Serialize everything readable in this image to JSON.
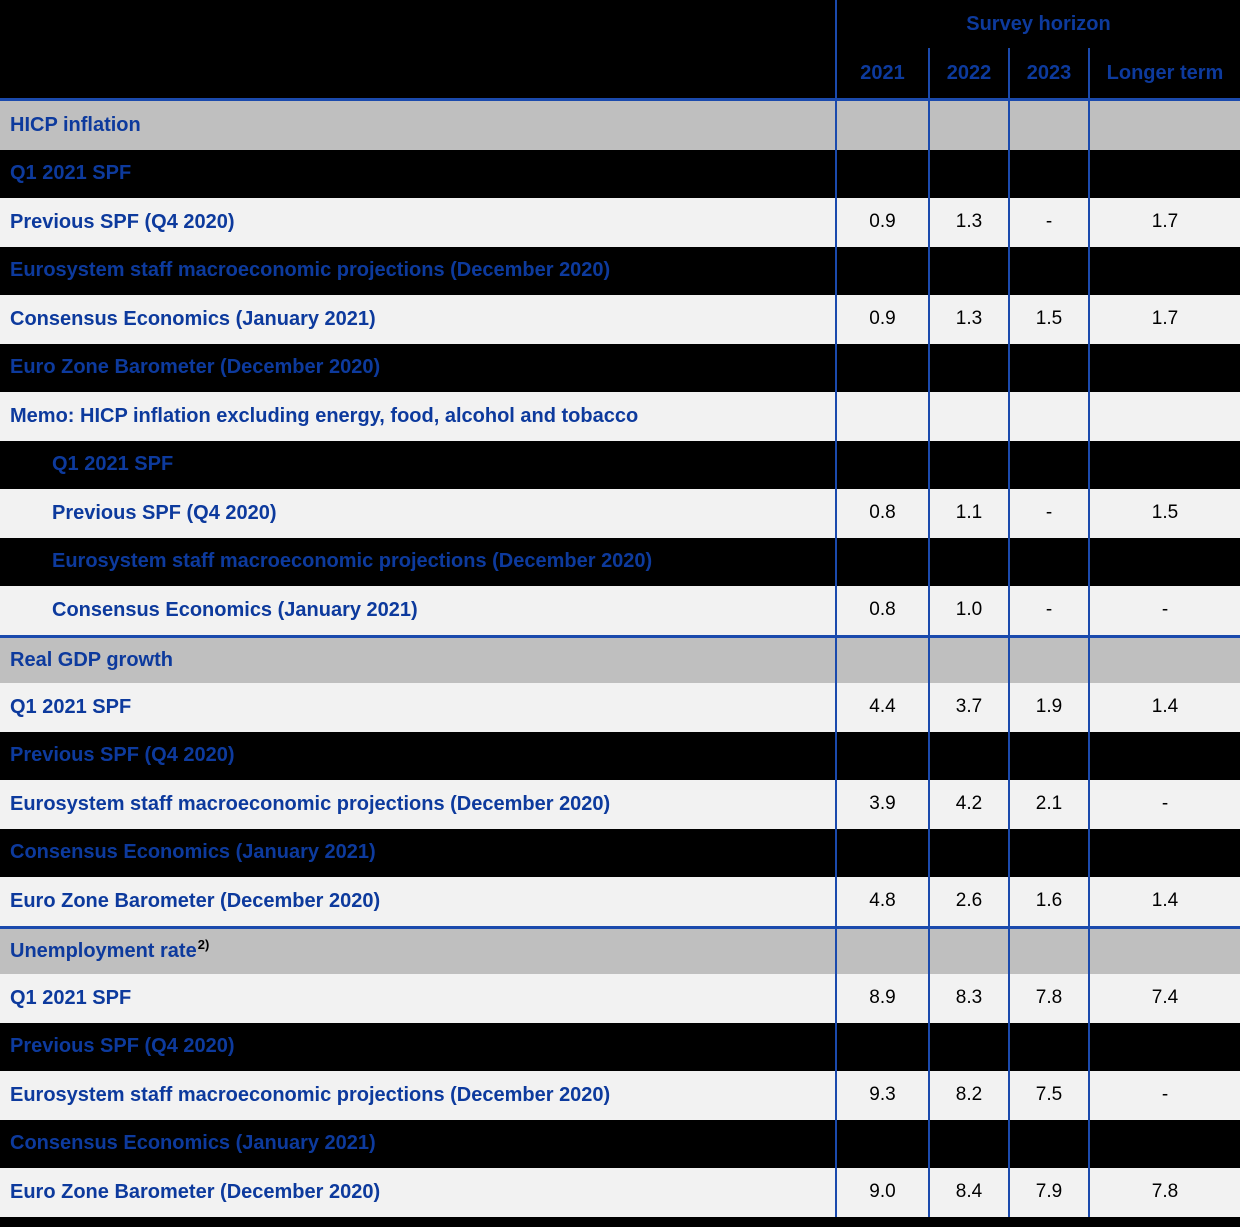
{
  "colors": {
    "text_blue": "#0d3a9d",
    "line_blue": "#1b4aad",
    "section_bg": "#bfbfbf",
    "row_bg": "#f2f2f2",
    "dark_bg": "#000000",
    "value_text": "#000000"
  },
  "header": {
    "group_label": "Survey horizon",
    "columns": [
      "2021",
      "2022",
      "2023",
      "Longer term"
    ]
  },
  "rows": [
    {
      "label": "HICP inflation",
      "style": "section",
      "indent": 0,
      "values": [
        "",
        "",
        "",
        ""
      ]
    },
    {
      "label": "Q1 2021 SPF",
      "style": "dark",
      "indent": 0,
      "values": [
        "",
        "",
        "",
        ""
      ]
    },
    {
      "label": "Previous SPF (Q4 2020)",
      "style": "light",
      "indent": 0,
      "values": [
        "0.9",
        "1.3",
        "-",
        "1.7"
      ]
    },
    {
      "label": "Eurosystem staff macroeconomic projections (December 2020)",
      "style": "dark",
      "indent": 0,
      "values": [
        "",
        "",
        "",
        ""
      ]
    },
    {
      "label": "Consensus Economics (January 2021)",
      "style": "light",
      "indent": 0,
      "values": [
        "0.9",
        "1.3",
        "1.5",
        "1.7"
      ]
    },
    {
      "label": "Euro Zone Barometer (December 2020)",
      "style": "dark",
      "indent": 0,
      "values": [
        "",
        "",
        "",
        ""
      ]
    },
    {
      "label": "Memo: HICP inflation excluding energy, food, alcohol and tobacco",
      "style": "light",
      "indent": 0,
      "values": [
        "",
        "",
        "",
        ""
      ]
    },
    {
      "label": "Q1 2021 SPF",
      "style": "dark",
      "indent": 1,
      "values": [
        "",
        "",
        "",
        ""
      ]
    },
    {
      "label": "Previous SPF (Q4 2020)",
      "style": "light",
      "indent": 1,
      "values": [
        "0.8",
        "1.1",
        "-",
        "1.5"
      ]
    },
    {
      "label": "Eurosystem staff macroeconomic projections (December 2020)",
      "style": "dark",
      "indent": 1,
      "values": [
        "",
        "",
        "",
        ""
      ]
    },
    {
      "label": "Consensus Economics (January 2021)",
      "style": "light",
      "indent": 1,
      "values": [
        "0.8",
        "1.0",
        "-",
        "-"
      ]
    },
    {
      "label": "Real GDP growth",
      "style": "section",
      "indent": 0,
      "rule_above": true,
      "values": [
        "",
        "",
        "",
        ""
      ]
    },
    {
      "label": "Q1 2021 SPF",
      "style": "light",
      "indent": 0,
      "values": [
        "4.4",
        "3.7",
        "1.9",
        "1.4"
      ]
    },
    {
      "label": "Previous SPF (Q4 2020)",
      "style": "dark",
      "indent": 0,
      "values": [
        "",
        "",
        "",
        ""
      ]
    },
    {
      "label": "Eurosystem staff macroeconomic projections (December 2020)",
      "style": "light",
      "indent": 0,
      "values": [
        "3.9",
        "4.2",
        "2.1",
        "-"
      ]
    },
    {
      "label": "Consensus Economics (January 2021)",
      "style": "dark",
      "indent": 0,
      "values": [
        "",
        "",
        "",
        ""
      ]
    },
    {
      "label": "Euro Zone Barometer (December 2020)",
      "style": "light",
      "indent": 0,
      "values": [
        "4.8",
        "2.6",
        "1.6",
        "1.4"
      ]
    },
    {
      "label": "Unemployment rate",
      "sup": "2)",
      "style": "section",
      "indent": 0,
      "rule_above": true,
      "values": [
        "",
        "",
        "",
        ""
      ]
    },
    {
      "label": "Q1 2021 SPF",
      "style": "light",
      "indent": 0,
      "values": [
        "8.9",
        "8.3",
        "7.8",
        "7.4"
      ]
    },
    {
      "label": "Previous SPF (Q4 2020)",
      "style": "dark",
      "indent": 0,
      "values": [
        "",
        "",
        "",
        ""
      ]
    },
    {
      "label": "Eurosystem staff macroeconomic projections (December 2020)",
      "style": "light",
      "indent": 0,
      "values": [
        "9.3",
        "8.2",
        "7.5",
        "-"
      ]
    },
    {
      "label": "Consensus Economics (January 2021)",
      "style": "dark",
      "indent": 0,
      "values": [
        "",
        "",
        "",
        ""
      ]
    },
    {
      "label": "Euro Zone Barometer (December 2020)",
      "style": "light",
      "indent": 0,
      "values": [
        "9.0",
        "8.4",
        "7.9",
        "7.8"
      ]
    }
  ]
}
